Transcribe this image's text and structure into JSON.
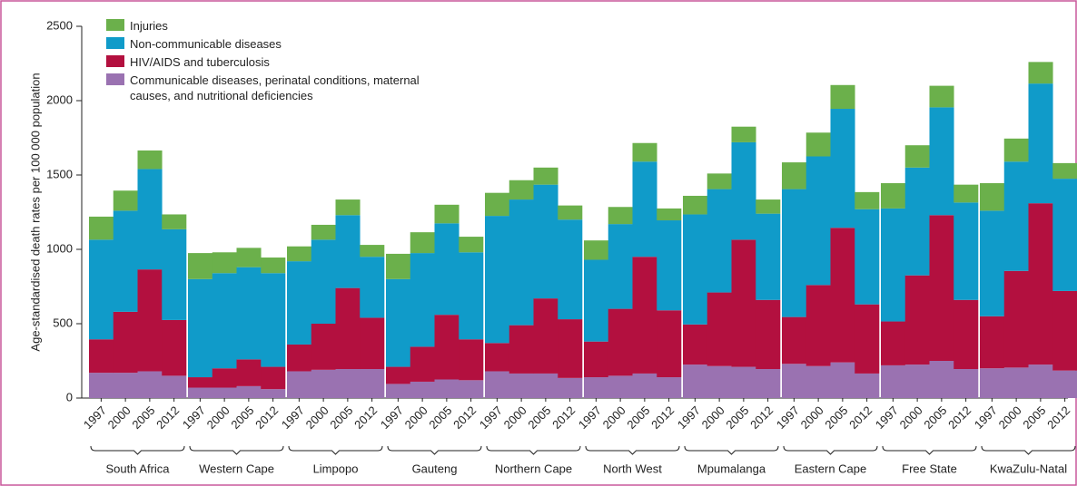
{
  "chart_data": {
    "type": "stacked_bar",
    "ylabel": "Age-standardised death rates per 100 000 population",
    "groups": [
      "South Africa",
      "Western Cape",
      "Limpopo",
      "Gauteng",
      "Northern Cape",
      "North West",
      "Mpumalanga",
      "Eastern Cape",
      "Free State",
      "KwaZulu-Natal"
    ],
    "categories": [
      "1997",
      "2000",
      "2005",
      "2012",
      "1997",
      "2000",
      "2005",
      "2012",
      "1997",
      "2000",
      "2005",
      "2012",
      "1997",
      "2000",
      "2005",
      "2012",
      "1997",
      "2000",
      "2005",
      "2012",
      "1997",
      "2000",
      "2005",
      "2012",
      "1997",
      "2000",
      "2005",
      "2012",
      "1997",
      "2000",
      "2005",
      "2012",
      "1997",
      "2000",
      "2005",
      "2012",
      "1997",
      "2000",
      "2005",
      "2012"
    ],
    "series": [
      {
        "name": "Communicable diseases, perinatal conditions, maternal causes, and nutritional deficiencies",
        "color": "#9a72b1",
        "values": [
          170,
          170,
          180,
          150,
          70,
          70,
          80,
          60,
          180,
          190,
          195,
          195,
          95,
          110,
          125,
          120,
          180,
          165,
          165,
          135,
          140,
          150,
          165,
          140,
          225,
          215,
          210,
          195,
          230,
          215,
          240,
          165,
          220,
          225,
          250,
          195,
          200,
          205,
          225,
          185
        ]
      },
      {
        "name": "HIV/AIDS and tuberculosis",
        "color": "#b3103f",
        "values": [
          225,
          410,
          685,
          375,
          70,
          130,
          180,
          150,
          180,
          310,
          545,
          345,
          115,
          235,
          435,
          275,
          190,
          325,
          505,
          395,
          240,
          450,
          785,
          450,
          270,
          495,
          855,
          465,
          315,
          545,
          905,
          465,
          295,
          600,
          980,
          465,
          350,
          650,
          1085,
          535
        ]
      },
      {
        "name": "Non-communicable diseases",
        "color": "#109bc9",
        "values": [
          670,
          680,
          675,
          610,
          660,
          640,
          620,
          630,
          560,
          565,
          490,
          410,
          590,
          630,
          615,
          585,
          855,
          845,
          765,
          670,
          550,
          570,
          640,
          605,
          740,
          695,
          655,
          580,
          860,
          865,
          800,
          640,
          760,
          725,
          725,
          655,
          710,
          735,
          805,
          755
        ]
      },
      {
        "name": "Injuries",
        "color": "#6bb04b",
        "values": [
          155,
          135,
          125,
          100,
          175,
          140,
          130,
          105,
          100,
          100,
          105,
          80,
          170,
          140,
          125,
          105,
          155,
          130,
          115,
          95,
          130,
          115,
          125,
          80,
          125,
          105,
          105,
          95,
          180,
          160,
          160,
          115,
          170,
          150,
          145,
          120,
          185,
          155,
          145,
          105
        ]
      }
    ],
    "ylim": [
      0,
      2500
    ],
    "yticks": [
      0,
      500,
      1000,
      1500,
      2000,
      2500
    ]
  }
}
